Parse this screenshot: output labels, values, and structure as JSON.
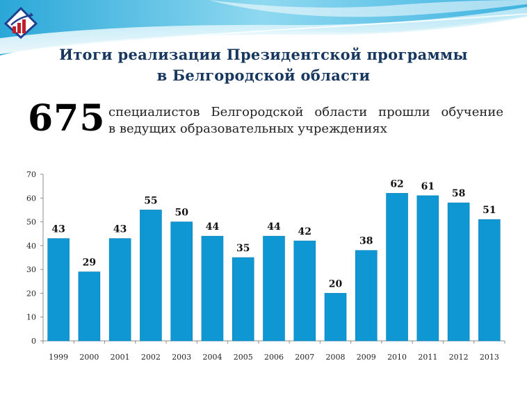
{
  "header": {
    "title_line1": "Итоги реализации Президентской программы",
    "title_line2": "в Белгородской области"
  },
  "highlight": {
    "number": "675",
    "text_line1": "специалистов Белгородской области прошли обучение",
    "text_line2": "в ведущих  образовательных учреждениях"
  },
  "colors": {
    "bar": "#0e97d2",
    "title": "#17375e",
    "accent": "#5bc8e8"
  },
  "chart_data": {
    "type": "bar",
    "categories": [
      "1999",
      "2000",
      "2001",
      "2002",
      "2003",
      "2004",
      "2005",
      "2006",
      "2007",
      "2008",
      "2009",
      "2010",
      "2011",
      "2012",
      "2013"
    ],
    "values": [
      43,
      29,
      43,
      55,
      50,
      44,
      35,
      44,
      42,
      20,
      38,
      62,
      61,
      58,
      51
    ],
    "ylim": [
      0,
      70
    ],
    "yticks": [
      "0",
      "10",
      "20",
      "30",
      "40",
      "50",
      "60",
      "70"
    ],
    "grid": false,
    "data_labels": true
  }
}
